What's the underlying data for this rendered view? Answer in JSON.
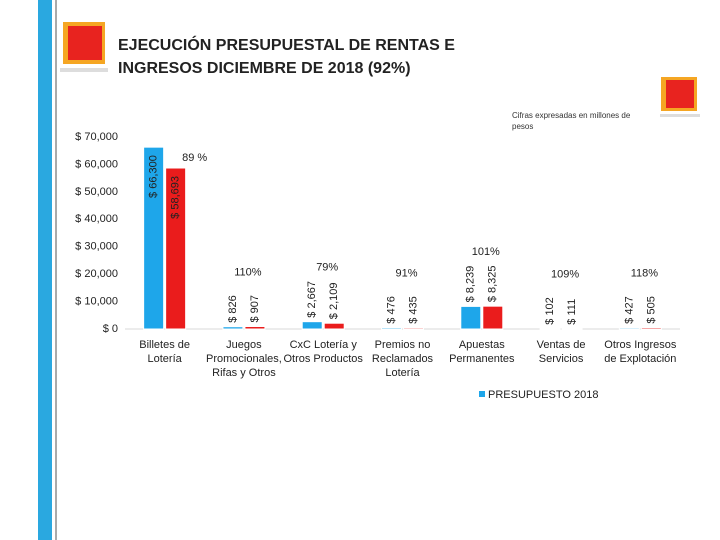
{
  "header": {
    "title": "EJECUCIÓN PRESUPUESTAL DE RENTAS E INGRESOS DICIEMBRE DE 2018 (92%)"
  },
  "chart_data": {
    "type": "bar",
    "subtitle": "Cifras expresadas en millones de pesos",
    "categories": [
      "Billetes de Lotería",
      "Juegos Promocionales, Rifas y Otros",
      "CxC Lotería y Otros Productos",
      "Premios no Reclamados Lotería",
      "Apuestas Permanentes",
      "Ventas de Servicios",
      "Otros Ingresos de Explotación"
    ],
    "series": [
      {
        "name": "PRESUPUESTO 2018",
        "color": "#1ea6ea",
        "values": [
          66300,
          826,
          2667,
          476,
          8239,
          102,
          427
        ],
        "value_labels": [
          "$ 66,300",
          "$ 826",
          "$ 2,667",
          "$ 476",
          "$ 8,239",
          "$ 102",
          "$ 427"
        ]
      },
      {
        "color": "#ea1c1c",
        "values": [
          58693,
          907,
          2109,
          435,
          8325,
          111,
          505
        ],
        "value_labels": [
          "$ 58,693",
          "$ 907",
          "$ 2,109",
          "$ 435",
          "$ 8,325",
          "$ 111",
          "$ 505"
        ]
      }
    ],
    "annotations": [
      "89 %",
      "110%",
      "79%",
      "91%",
      "101%",
      "109%",
      "118%"
    ],
    "ylim": [
      0,
      70000
    ],
    "yticks": [
      {
        "value": 0,
        "label": "$ 0"
      },
      {
        "value": 10000,
        "label": "$ 10,000"
      },
      {
        "value": 20000,
        "label": "$ 20,000"
      },
      {
        "value": 30000,
        "label": "$ 30,000"
      },
      {
        "value": 40000,
        "label": "$ 40,000"
      },
      {
        "value": 50000,
        "label": "$ 50,000"
      },
      {
        "value": 60000,
        "label": "$ 60,000"
      },
      {
        "value": 70000,
        "label": "$ 70,000"
      }
    ],
    "grid": false
  }
}
